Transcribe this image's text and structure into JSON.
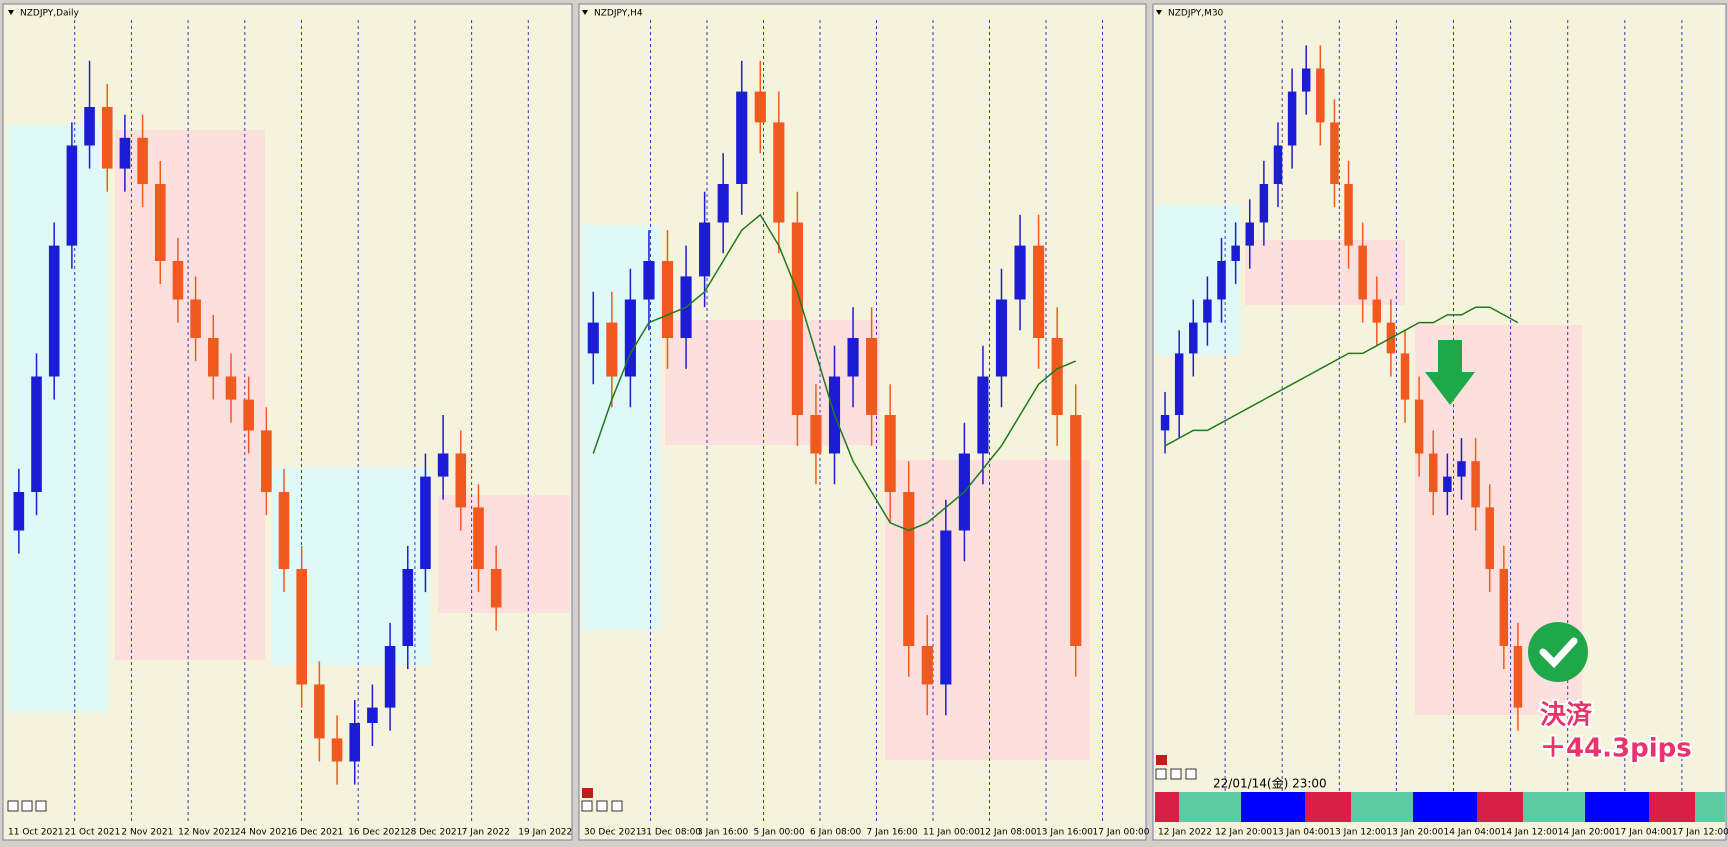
{
  "chart_data": [
    {
      "type": "candlestick",
      "title": "NZDJPY,Daily",
      "ylim": [
        0,
        100
      ],
      "x_labels": [
        "11 Oct 2021",
        "21 Oct 2021",
        "2 Nov 2021",
        "12 Nov 2021",
        "24 Nov 2021",
        "6 Dec 2021",
        "16 Dec 2021",
        "28 Dec 2021",
        "7 Jan 2022",
        "19 Jan 2022"
      ],
      "open": [
        35,
        40,
        55,
        72,
        85,
        90,
        82,
        86,
        80,
        70,
        65,
        60,
        55,
        52,
        48,
        40,
        30,
        15,
        8,
        5,
        10,
        12,
        20,
        30,
        42,
        45,
        38,
        30
      ],
      "high": [
        43,
        58,
        75,
        88,
        96,
        93,
        89,
        89,
        83,
        73,
        68,
        63,
        58,
        55,
        51,
        43,
        33,
        18,
        11,
        13,
        15,
        23,
        33,
        45,
        50,
        48,
        41,
        33
      ],
      "low": [
        32,
        37,
        52,
        69,
        82,
        79,
        79,
        77,
        67,
        62,
        57,
        52,
        49,
        45,
        37,
        27,
        12,
        5,
        2,
        2,
        7,
        9,
        17,
        27,
        39,
        35,
        27,
        22
      ],
      "close": [
        40,
        55,
        72,
        85,
        90,
        82,
        86,
        80,
        70,
        65,
        60,
        55,
        52,
        48,
        40,
        30,
        15,
        8,
        5,
        10,
        12,
        20,
        30,
        42,
        45,
        38,
        30,
        25
      ],
      "up_color": "#1c1cd6",
      "down_color": "#f05a1e"
    },
    {
      "type": "candlestick",
      "title": "NZDJPY,H4",
      "ylim": [
        0,
        100
      ],
      "x_labels": [
        "30 Dec 2021",
        "31 Dec 08:00",
        "3 Jan 16:00",
        "5 Jan 00:00",
        "6 Jan 08:00",
        "7 Jan 16:00",
        "11 Jan 00:00",
        "12 Jan 08:00",
        "13 Jan 16:00",
        "17 Jan 00:00"
      ],
      "open": [
        58,
        62,
        55,
        65,
        70,
        60,
        68,
        75,
        80,
        92,
        88,
        75,
        50,
        45,
        55,
        60,
        50,
        40,
        20,
        15,
        35,
        45,
        55,
        65,
        72,
        60,
        50
      ],
      "high": [
        66,
        66,
        69,
        74,
        74,
        72,
        79,
        84,
        96,
        96,
        92,
        79,
        54,
        59,
        64,
        64,
        54,
        44,
        24,
        39,
        49,
        59,
        69,
        76,
        76,
        64,
        54
      ],
      "low": [
        54,
        51,
        51,
        61,
        56,
        56,
        64,
        71,
        76,
        84,
        71,
        46,
        41,
        41,
        51,
        46,
        36,
        16,
        11,
        11,
        31,
        41,
        51,
        61,
        56,
        46,
        16
      ],
      "close": [
        62,
        55,
        65,
        70,
        60,
        68,
        75,
        80,
        92,
        88,
        75,
        50,
        45,
        55,
        60,
        50,
        40,
        20,
        15,
        35,
        45,
        55,
        65,
        72,
        60,
        50,
        20
      ],
      "ma": [
        45,
        52,
        58,
        62,
        63,
        64,
        66,
        70,
        74,
        76,
        72,
        66,
        58,
        50,
        44,
        40,
        36,
        35,
        36,
        38,
        40,
        43,
        46,
        50,
        54,
        56,
        57
      ],
      "ma_color": "#1e7a1e",
      "up_color": "#1c1cd6",
      "down_color": "#f05a1e"
    },
    {
      "type": "candlestick",
      "title": "NZDJPY,M30",
      "ylim": [
        0,
        100
      ],
      "x_labels": [
        "12 Jan 2022",
        "12 Jan 20:00",
        "13 Jan 04:00",
        "13 Jan 12:00",
        "13 Jan 20:00",
        "14 Jan 04:00",
        "14 Jan 12:00",
        "14 Jan 20:00",
        "17 Jan 04:00",
        "17 Jan 12:00"
      ],
      "open": [
        48,
        50,
        58,
        62,
        65,
        70,
        72,
        75,
        80,
        85,
        92,
        95,
        88,
        80,
        72,
        65,
        62,
        58,
        52,
        45,
        40,
        42,
        44,
        38,
        30,
        20
      ],
      "high": [
        53,
        61,
        65,
        68,
        73,
        75,
        78,
        83,
        88,
        95,
        98,
        98,
        91,
        83,
        75,
        68,
        65,
        61,
        55,
        48,
        45,
        47,
        47,
        41,
        33,
        23
      ],
      "low": [
        45,
        47,
        55,
        59,
        62,
        67,
        69,
        72,
        77,
        82,
        89,
        85,
        77,
        69,
        62,
        59,
        55,
        49,
        42,
        37,
        37,
        39,
        35,
        27,
        17,
        9
      ],
      "close": [
        50,
        58,
        62,
        65,
        70,
        72,
        75,
        80,
        85,
        92,
        95,
        88,
        80,
        72,
        65,
        62,
        58,
        52,
        45,
        40,
        42,
        44,
        38,
        30,
        20,
        12
      ],
      "ma": [
        46,
        47,
        48,
        48,
        49,
        50,
        51,
        52,
        53,
        54,
        55,
        56,
        57,
        58,
        58,
        59,
        60,
        61,
        62,
        62,
        63,
        63,
        64,
        64,
        63,
        62
      ],
      "ma_color": "#1e7a1e",
      "up_color": "#1c1cd6",
      "down_color": "#f05a1e"
    }
  ],
  "status": {
    "timestamp": "22/01/14(金) 23:00"
  },
  "annotation": {
    "line1": "決済",
    "line2": "＋44.3pips"
  }
}
